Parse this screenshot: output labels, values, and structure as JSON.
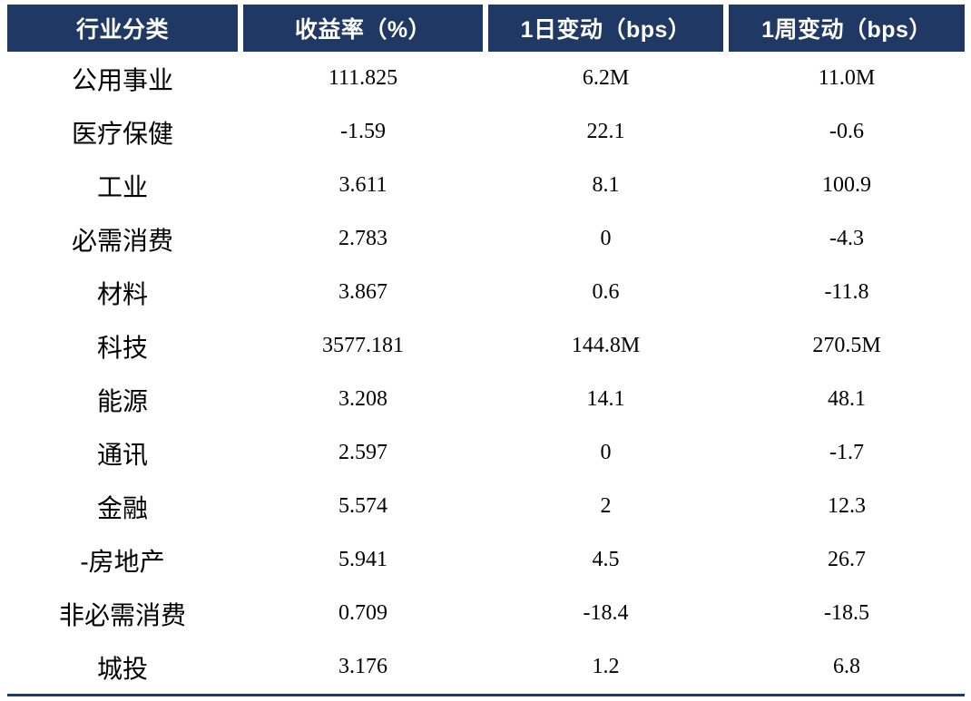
{
  "colors": {
    "header_bg": "#1f3864",
    "header_text": "#ffffff",
    "body_text": "#000000",
    "bottom_rule": "#1f3864",
    "background": "#ffffff"
  },
  "chart_data": {
    "type": "table",
    "title": "",
    "columns": [
      "行业分类",
      "收益率（%）",
      "1日变动（bps）",
      "1周变动（bps）"
    ],
    "rows": [
      [
        "公用事业",
        "111.825",
        "6.2M",
        "11.0M"
      ],
      [
        "医疗保健",
        "-1.59",
        "22.1",
        "-0.6"
      ],
      [
        "工业",
        "3.611",
        "8.1",
        "100.9"
      ],
      [
        "必需消费",
        "2.783",
        "0",
        "-4.3"
      ],
      [
        "材料",
        "3.867",
        "0.6",
        "-11.8"
      ],
      [
        "科技",
        "3577.181",
        "144.8M",
        "270.5M"
      ],
      [
        "能源",
        "3.208",
        "14.1",
        "48.1"
      ],
      [
        "通讯",
        "2.597",
        "0",
        "-1.7"
      ],
      [
        "金融",
        "5.574",
        "2",
        "12.3"
      ],
      [
        "-房地产",
        "5.941",
        "4.5",
        "26.7"
      ],
      [
        "非必需消费",
        "0.709",
        "-18.4",
        "-18.5"
      ],
      [
        "城投",
        "3.176",
        "1.2",
        "6.8"
      ]
    ],
    "layout": {
      "header_style": "navy-bar-with-white-gaps",
      "gridlines": false,
      "bottom_rule": true,
      "alignment": "center"
    }
  }
}
